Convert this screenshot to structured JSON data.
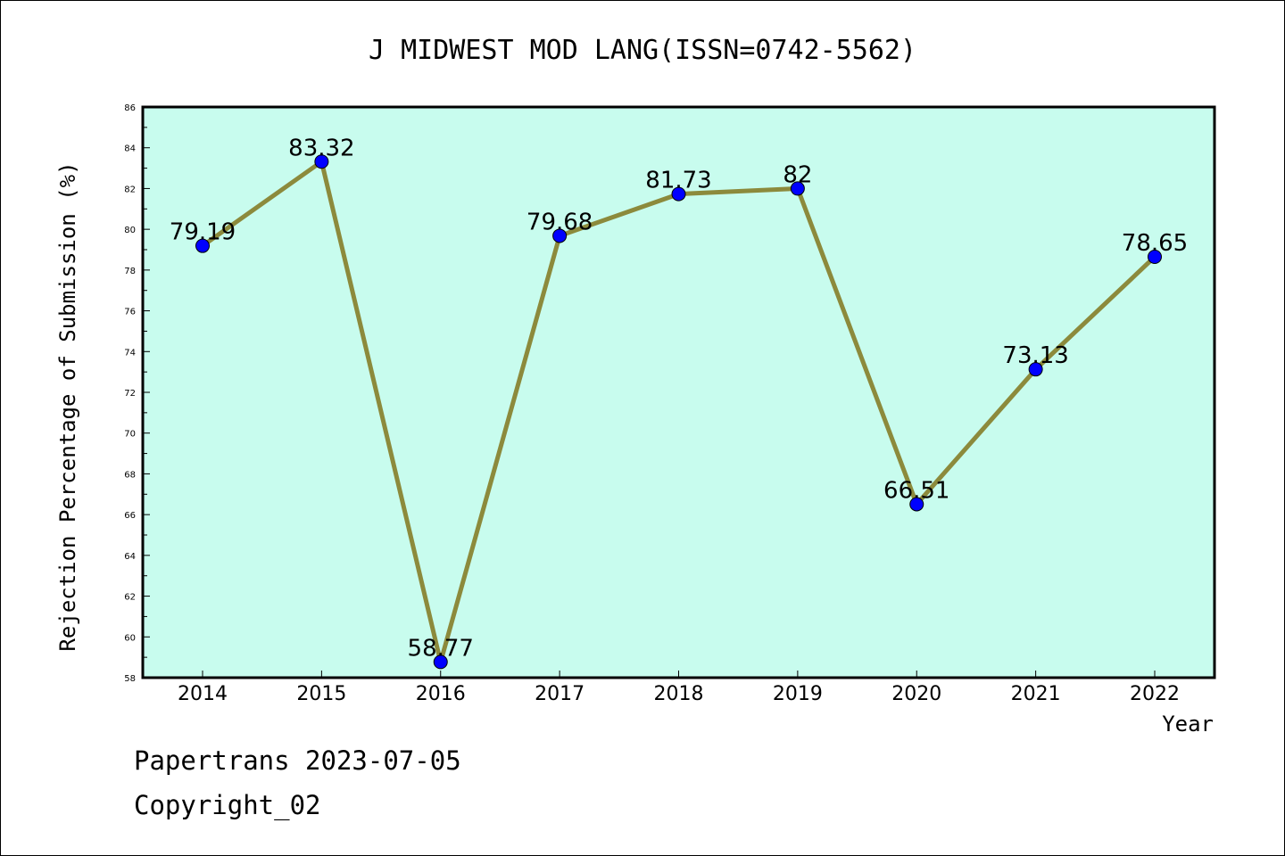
{
  "chart_data": {
    "type": "line",
    "title": "J MIDWEST MOD LANG(ISSN=0742-5562)",
    "xlabel": "Year",
    "ylabel": "Rejection Percentage of Submission (%)",
    "categories": [
      "2014",
      "2015",
      "2016",
      "2017",
      "2018",
      "2019",
      "2020",
      "2021",
      "2022"
    ],
    "values": [
      79.19,
      83.32,
      58.77,
      79.68,
      81.73,
      82,
      66.51,
      73.13,
      78.65
    ],
    "data_labels": [
      "79.19",
      "83.32",
      "58.77",
      "79.68",
      "81.73",
      "82",
      "66.51",
      "73.13",
      "78.65"
    ],
    "ylim": [
      58,
      86
    ],
    "yticks": [
      58,
      60,
      62,
      64,
      66,
      68,
      70,
      72,
      74,
      76,
      78,
      80,
      82,
      84,
      86
    ],
    "grid": false,
    "colors": {
      "plot_background": "#c8fcee",
      "line": "#8c8a3c",
      "marker": "#0000ff"
    }
  },
  "footer": {
    "line1": "Papertrans 2023-07-05",
    "line2": "Copyright_02"
  }
}
